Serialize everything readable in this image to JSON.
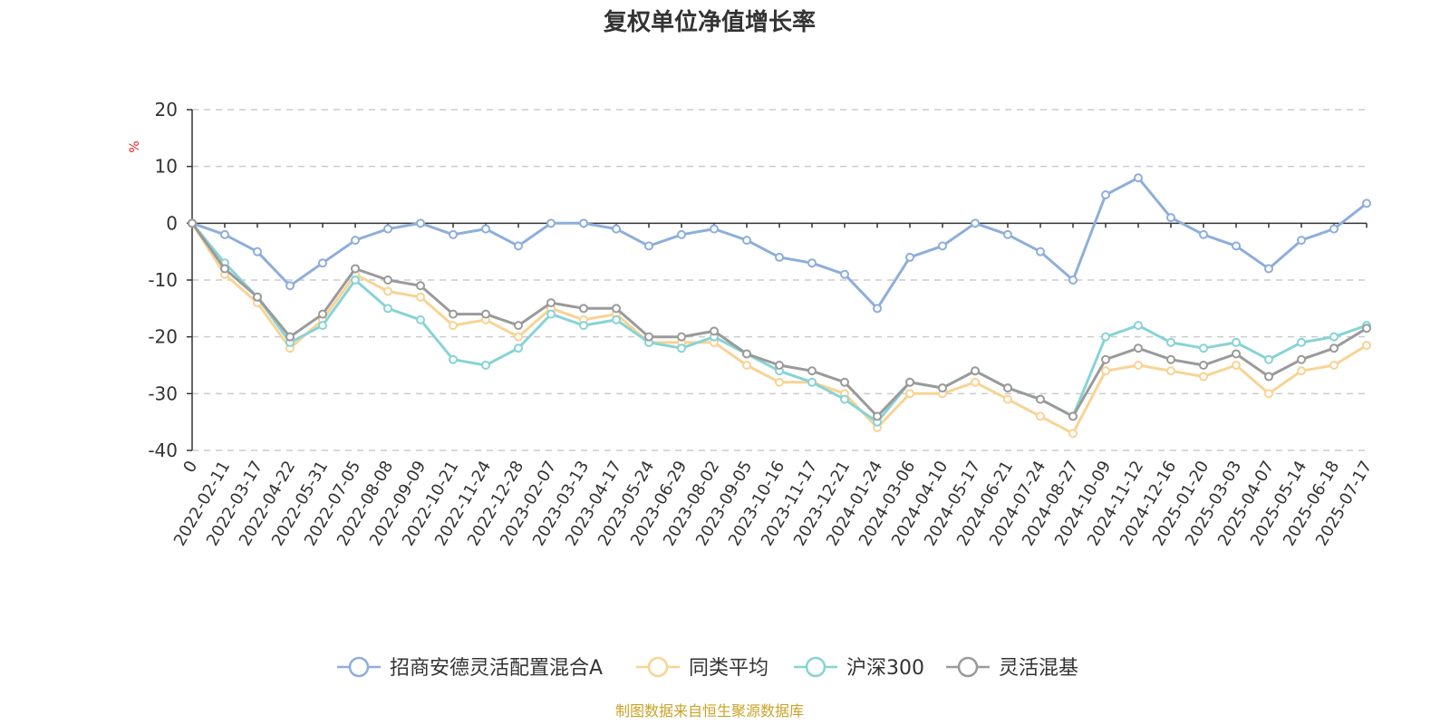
{
  "chart_data": {
    "type": "line",
    "title": "复权单位净值增长率",
    "ylabel": "%",
    "ylim": [
      -40,
      20
    ],
    "yticks": [
      -40,
      -30,
      -20,
      -10,
      0,
      10,
      20
    ],
    "grid": true,
    "legend_position": "bottom",
    "source": "制图数据来自恒生聚源数据库",
    "x": [
      "0",
      "2022-02-11",
      "2022-03-17",
      "2022-04-22",
      "2022-05-31",
      "2022-07-05",
      "2022-08-08",
      "2022-09-09",
      "2022-10-21",
      "2022-11-24",
      "2022-12-28",
      "2023-02-07",
      "2023-03-13",
      "2023-04-17",
      "2023-05-24",
      "2023-06-29",
      "2023-08-02",
      "2023-09-05",
      "2023-10-16",
      "2023-11-17",
      "2023-12-21",
      "2024-01-24",
      "2024-03-06",
      "2024-04-10",
      "2024-05-17",
      "2024-06-21",
      "2024-07-24",
      "2024-08-27",
      "2024-10-09",
      "2024-11-12",
      "2024-12-16",
      "2025-01-20",
      "2025-03-03",
      "2025-04-07",
      "2025-05-14",
      "2025-06-18",
      "2025-07-17"
    ],
    "series": [
      {
        "name": "招商安德灵活配置混合A",
        "color": "#8eaedb",
        "values": [
          0,
          -2,
          -5,
          -11,
          -7,
          -3,
          -1,
          0,
          -2,
          -1,
          -4,
          0,
          0,
          -1,
          -4,
          -2,
          -1,
          -3,
          -6,
          -7,
          -9,
          -15,
          -6,
          -4,
          0,
          -2,
          -5,
          -10,
          5,
          8,
          1,
          -2,
          -4,
          -8,
          -3,
          -1,
          3.5
        ]
      },
      {
        "name": "同类平均",
        "color": "#f8d393",
        "values": [
          0,
          -9,
          -14,
          -22,
          -17,
          -9,
          -12,
          -13,
          -18,
          -17,
          -20,
          -15,
          -17,
          -16,
          -21,
          -21,
          -21,
          -25,
          -28,
          -28,
          -30,
          -36,
          -30,
          -30,
          -28,
          -31,
          -34,
          -37,
          -26,
          -25,
          -26,
          -27,
          -25,
          -30,
          -26,
          -25,
          -21.5
        ]
      },
      {
        "name": "沪深300",
        "color": "#87d3d6",
        "values": [
          0,
          -7,
          -13,
          -21,
          -18,
          -10,
          -15,
          -17,
          -24,
          -25,
          -22,
          -16,
          -18,
          -17,
          -21,
          -22,
          -20,
          -23,
          -26,
          -28,
          -31,
          -35,
          -28,
          -29,
          -26,
          -29,
          -31,
          -34,
          -20,
          -18,
          -21,
          -22,
          -21,
          -24,
          -21,
          -20,
          -18
        ]
      },
      {
        "name": "灵活混基",
        "color": "#9a9a9a",
        "values": [
          0,
          -8,
          -13,
          -20,
          -16,
          -8,
          -10,
          -11,
          -16,
          -16,
          -18,
          -14,
          -15,
          -15,
          -20,
          -20,
          -19,
          -23,
          -25,
          -26,
          -28,
          -34,
          -28,
          -29,
          -26,
          -29,
          -31,
          -34,
          -24,
          -22,
          -24,
          -25,
          -23,
          -27,
          -24,
          -22,
          -18.5
        ]
      }
    ]
  }
}
